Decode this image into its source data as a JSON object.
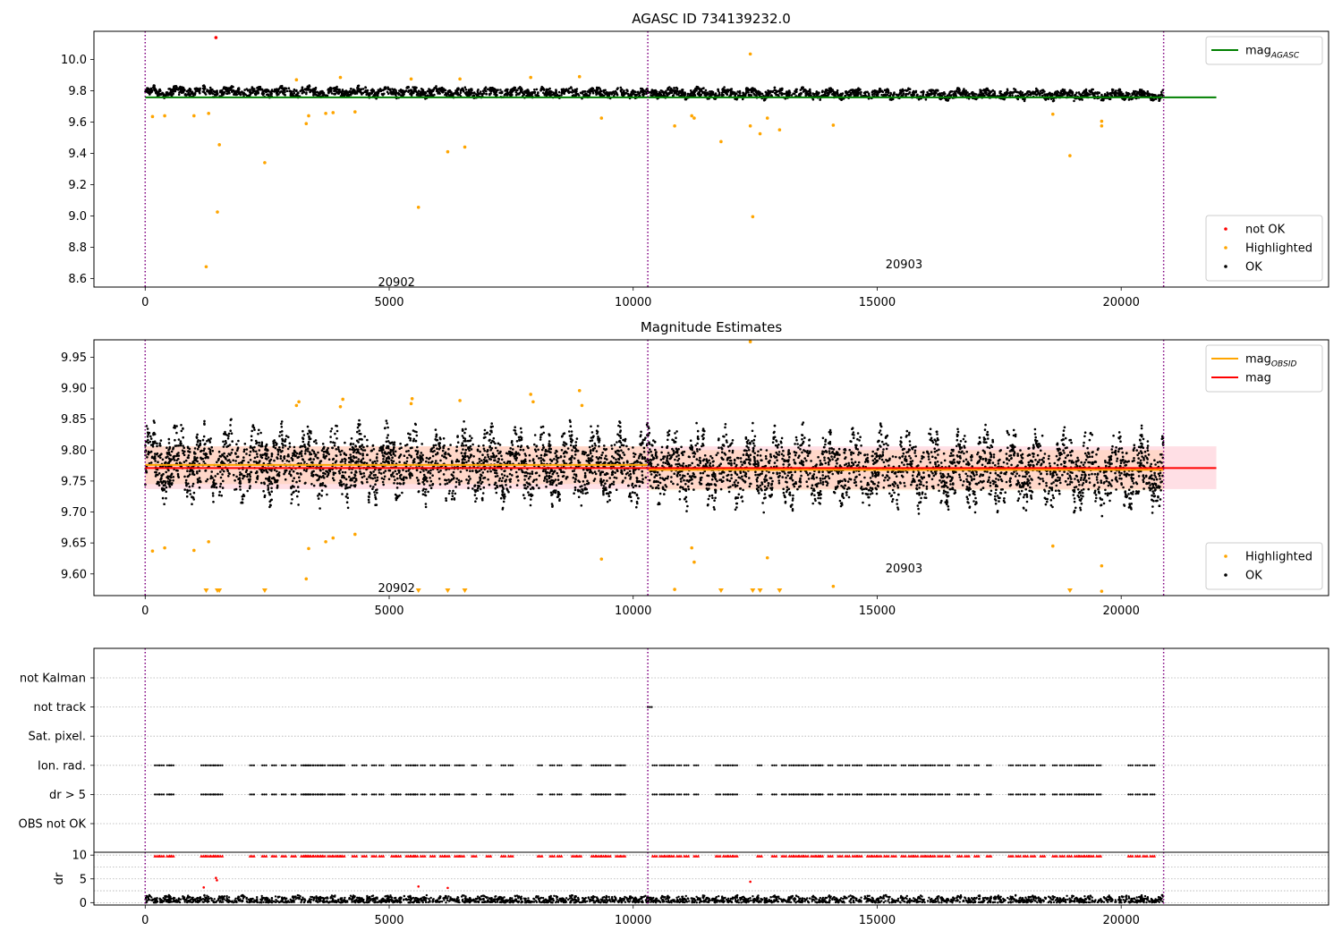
{
  "figure_title": "AGASC ID 734139232.0",
  "colors": {
    "ok": "#000000",
    "highlighted": "#ffa500",
    "not_ok": "#ff0000",
    "mag_agasc": "#008000",
    "mag_obsid": "#ffa500",
    "mag": "#ff0000",
    "obsid_boundary": "#800080",
    "band": "#ffc0cb"
  },
  "chart_data": [
    {
      "type": "scatter",
      "title": "AGASC ID 734139232.0",
      "xlabel": "",
      "ylabel": "",
      "xlim": [
        -1050,
        24250
      ],
      "ylim": [
        8.545,
        10.18
      ],
      "xticks": [
        0,
        5000,
        10000,
        15000,
        20000
      ],
      "yticks": [
        8.6,
        8.8,
        9.0,
        9.2,
        9.4,
        9.6,
        9.8,
        10.0
      ],
      "ytick_decimals": 1,
      "obsid_boundaries": [
        0,
        10300,
        20870
      ],
      "obsid_labels": [
        {
          "label": "20902",
          "x": 5150,
          "y": 8.58
        },
        {
          "label": "20903",
          "x": 15550,
          "y": 8.695
        }
      ],
      "lines": [
        {
          "name": "mag$_{AGASC}$",
          "x": [
            0,
            21950
          ],
          "y": [
            9.758,
            9.758
          ],
          "color": "#008000"
        }
      ],
      "ok_band": {
        "center": 9.78,
        "amplitude": 0.035,
        "envelope": [
          [
            0,
            9.795
          ],
          [
            10300,
            9.785
          ],
          [
            20870,
            9.772
          ]
        ]
      },
      "highlighted_points": {
        "x": [
          150,
          400,
          1000,
          1250,
          1300,
          1480,
          1520,
          2450,
          3300,
          3350,
          3700,
          3850,
          4300,
          6200,
          6550,
          5600,
          9350,
          10850,
          11200,
          11250,
          11800,
          12400,
          12450,
          12600,
          12750,
          13000,
          14100,
          18600,
          18950,
          19600,
          19600,
          3100,
          4000,
          5450,
          6450,
          7900,
          8900,
          12400
        ],
        "y": [
          9.635,
          9.64,
          9.64,
          8.675,
          9.655,
          9.025,
          9.455,
          9.34,
          9.59,
          9.64,
          9.655,
          9.66,
          9.665,
          9.41,
          9.44,
          9.055,
          9.625,
          9.575,
          9.64,
          9.625,
          9.475,
          9.575,
          8.995,
          9.525,
          9.625,
          9.55,
          9.58,
          9.65,
          9.385,
          9.605,
          9.575,
          9.87,
          9.885,
          9.875,
          9.875,
          9.885,
          9.89,
          10.035
        ]
      },
      "not_ok_points": {
        "x": [
          1450
        ],
        "y": [
          10.14
        ]
      },
      "legends": [
        {
          "position": "top-right",
          "entries": [
            {
              "label": "mag$_{AGASC}$",
              "kind": "line",
              "color": "#008000"
            }
          ]
        },
        {
          "position": "lower-right",
          "entries": [
            {
              "label": "not OK",
              "kind": "dot",
              "color": "#ff0000"
            },
            {
              "label": "Highlighted",
              "kind": "dot",
              "color": "#ffa500"
            },
            {
              "label": "OK",
              "kind": "dot",
              "color": "#000000"
            }
          ]
        }
      ]
    },
    {
      "type": "scatter",
      "title": "Magnitude Estimates",
      "xlabel": "",
      "ylabel": "",
      "xlim": [
        -1050,
        24250
      ],
      "ylim": [
        9.565,
        9.978
      ],
      "xticks": [
        0,
        5000,
        10000,
        15000,
        20000
      ],
      "yticks": [
        9.6,
        9.65,
        9.7,
        9.75,
        9.8,
        9.85,
        9.9,
        9.95
      ],
      "ytick_decimals": 2,
      "obsid_boundaries": [
        0,
        10300,
        20870
      ],
      "obsid_labels": [
        {
          "label": "20902",
          "x": 5150,
          "y": 9.578
        },
        {
          "label": "20903",
          "x": 15550,
          "y": 9.61
        }
      ],
      "lines": [
        {
          "name": "mag$_{OBSID}$",
          "x": [
            0,
            10300
          ],
          "y": [
            9.776,
            9.776
          ],
          "color": "#ffa500"
        },
        {
          "name": "mag$_{OBSID}$",
          "x": [
            10300,
            20870
          ],
          "y": [
            9.768,
            9.768
          ],
          "color": "#ffa500"
        },
        {
          "name": "mag",
          "x": [
            0,
            21950
          ],
          "y": [
            9.771,
            9.771
          ],
          "color": "#ff0000"
        }
      ],
      "bands": [
        {
          "x": [
            0,
            21950
          ],
          "ylow": 9.737,
          "yhigh": 9.806,
          "color": "#ffc0cb",
          "opacity": 0.5
        },
        {
          "x": [
            0,
            10300
          ],
          "ylow": 9.745,
          "yhigh": 9.806,
          "color": "#ffa500",
          "opacity": 0.12
        },
        {
          "x": [
            10300,
            20870
          ],
          "ylow": 9.735,
          "yhigh": 9.8,
          "color": "#ffa500",
          "opacity": 0.12
        }
      ],
      "ok_band": {
        "center": 9.772,
        "amplitude": 0.06,
        "envelope": [
          [
            0,
            9.78
          ],
          [
            10300,
            9.775
          ],
          [
            20870,
            9.765
          ]
        ]
      },
      "highlighted_points": {
        "x": [
          150,
          400,
          1000,
          1300,
          3300,
          3350,
          3700,
          3850,
          4300,
          9350,
          10850,
          11200,
          11250,
          12750,
          14100,
          18600,
          19600,
          19600,
          3100,
          3150,
          4000,
          4050,
          5450,
          5470,
          6450,
          7900,
          7950,
          8900,
          8950,
          12400
        ],
        "y": [
          9.637,
          9.642,
          9.638,
          9.652,
          9.592,
          9.641,
          9.652,
          9.658,
          9.664,
          9.624,
          9.575,
          9.642,
          9.619,
          9.626,
          9.58,
          9.645,
          9.613,
          9.572,
          9.872,
          9.878,
          9.87,
          9.882,
          9.875,
          9.883,
          9.88,
          9.89,
          9.878,
          9.896,
          9.872,
          9.975
        ]
      },
      "offscale_low_markers": {
        "x": [
          1250,
          1480,
          1520,
          2450,
          5600,
          6200,
          6550,
          11800,
          12450,
          12600,
          13000,
          18950
        ]
      },
      "legends": [
        {
          "position": "top-right",
          "entries": [
            {
              "label": "mag$_{OBSID}$",
              "kind": "line",
              "color": "#ffa500"
            },
            {
              "label": "mag",
              "kind": "line",
              "color": "#ff0000"
            }
          ]
        },
        {
          "position": "lower-right",
          "entries": [
            {
              "label": "Highlighted",
              "kind": "dot",
              "color": "#ffa500"
            },
            {
              "label": "OK",
              "kind": "dot",
              "color": "#000000"
            }
          ]
        }
      ]
    },
    {
      "type": "scatter",
      "title": "",
      "xlabel": "",
      "ylabel": "",
      "xlim": [
        -1050,
        24250
      ],
      "categories": [
        "not Kalman",
        "not track",
        "Sat. pixel.",
        "Ion. rad.",
        "dr > 5",
        "OBS not OK"
      ],
      "grid": true,
      "obsid_boundaries": [
        0,
        10300,
        20870
      ],
      "flag_points": {
        "not track": [
          10300
        ],
        "Ion. rad.": [
          200,
          300,
          450,
          500,
          1150,
          1250,
          1350,
          1400,
          1500,
          2150,
          2400,
          2600,
          2800,
          3000,
          3200,
          3250,
          3300,
          3350,
          3450,
          3550,
          3600,
          3750,
          3850,
          3950,
          4000,
          4250,
          4450,
          4650,
          4800,
          5050,
          5150,
          5350,
          5450,
          5500,
          5650,
          5850,
          6050,
          6150,
          6350,
          6450,
          6700,
          7000,
          7300,
          7450,
          8050,
          8300,
          8450,
          8750,
          8850,
          9150,
          9250,
          9350,
          9450,
          9650,
          9750,
          10400,
          10550,
          10650,
          10750,
          10900,
          11050,
          11250,
          11700,
          11850,
          11950,
          12050,
          12550,
          12850,
          13050,
          13200,
          13300,
          13400,
          13500,
          13650,
          13750,
          13800,
          14000,
          14200,
          14350,
          14500,
          14600,
          14800,
          14900,
          15000,
          15150,
          15300,
          15500,
          15650,
          15750,
          15900,
          16000,
          16100,
          16250,
          16400,
          16650,
          16800,
          17000,
          17250,
          17700,
          17850,
          18000,
          18150,
          18350,
          18600,
          18750,
          18900,
          19050,
          19150,
          19250,
          19350,
          19500,
          20150,
          20300,
          20450,
          20600
        ],
        "dr > 5": [
          200,
          300,
          450,
          500,
          1150,
          1250,
          1350,
          1400,
          1500,
          2150,
          2400,
          2600,
          2800,
          3000,
          3200,
          3250,
          3300,
          3350,
          3450,
          3550,
          3600,
          3750,
          3850,
          3950,
          4000,
          4250,
          4450,
          4650,
          4800,
          5050,
          5150,
          5350,
          5450,
          5500,
          5650,
          5850,
          6050,
          6150,
          6350,
          6450,
          6700,
          7000,
          7300,
          7450,
          8050,
          8300,
          8450,
          8750,
          8850,
          9150,
          9250,
          9350,
          9450,
          9650,
          9750,
          10400,
          10550,
          10650,
          10750,
          10900,
          11050,
          11250,
          11700,
          11850,
          11950,
          12050,
          12550,
          12850,
          13050,
          13200,
          13300,
          13400,
          13500,
          13650,
          13750,
          13800,
          14000,
          14200,
          14350,
          14500,
          14600,
          14800,
          14900,
          15000,
          15150,
          15300,
          15500,
          15650,
          15750,
          15900,
          16000,
          16100,
          16250,
          16400,
          16650,
          16800,
          17000,
          17250,
          17700,
          17850,
          18000,
          18150,
          18350,
          18600,
          18750,
          18900,
          19050,
          19150,
          19250,
          19350,
          19500,
          20150,
          20300,
          20450,
          20600
        ]
      }
    },
    {
      "type": "scatter",
      "title": "",
      "xlabel": "",
      "ylabel": "dr",
      "xlim": [
        -1050,
        24250
      ],
      "ylim": [
        -0.5,
        10.6
      ],
      "yticks": [
        0,
        5,
        10
      ],
      "xticks": [
        0,
        5000,
        10000,
        15000,
        20000
      ],
      "grid": true,
      "obsid_boundaries": [
        0,
        10300,
        20870
      ],
      "ok_band": {
        "center": 0.9,
        "amplitude": 0.9,
        "envelope": [
          [
            0,
            1.0
          ],
          [
            20870,
            0.8
          ]
        ]
      },
      "clipped_points_at": 9.8,
      "not_ok_points": {
        "x": [
          1200,
          1450,
          1470,
          5600,
          6200,
          12400
        ],
        "y": [
          3.2,
          5.2,
          4.7,
          3.4,
          3.1,
          4.4
        ]
      }
    }
  ]
}
